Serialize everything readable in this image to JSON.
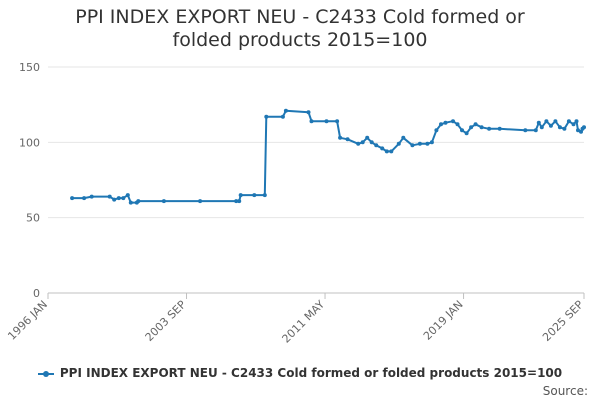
{
  "chart_data": {
    "type": "line",
    "title": "PPI INDEX EXPORT NEU - C2433 Cold formed or folded products 2015=100",
    "xlabel": "",
    "ylabel": "",
    "ylim": [
      0,
      150
    ],
    "yticks": [
      "0",
      "50",
      "100",
      "150"
    ],
    "xlim": [
      "1996-01",
      "2025-09"
    ],
    "xticks": [
      "1996 JAN",
      "2003 SEP",
      "2011 MAY",
      "2019 JAN",
      "2025 SEP"
    ],
    "grid": true,
    "legend_position": "bottom",
    "series": [
      {
        "name": "PPI INDEX EXPORT NEU - C2433 Cold formed or folded products 2015=100",
        "color": "#1f77b4",
        "points": [
          [
            "1997-05",
            63
          ],
          [
            "1998-01",
            63
          ],
          [
            "1998-06",
            64
          ],
          [
            "1999-06",
            64
          ],
          [
            "1999-09",
            62
          ],
          [
            "1999-12",
            63
          ],
          [
            "2000-03",
            63
          ],
          [
            "2000-06",
            65
          ],
          [
            "2000-08",
            60
          ],
          [
            "2000-12",
            60
          ],
          [
            "2001-01",
            61
          ],
          [
            "2002-06",
            61
          ],
          [
            "2004-06",
            61
          ],
          [
            "2006-06",
            61
          ],
          [
            "2006-08",
            61
          ],
          [
            "2006-09",
            65
          ],
          [
            "2007-06",
            65
          ],
          [
            "2008-01",
            65
          ],
          [
            "2008-02",
            117
          ],
          [
            "2009-01",
            117
          ],
          [
            "2009-03",
            121
          ],
          [
            "2010-06",
            120
          ],
          [
            "2010-08",
            114
          ],
          [
            "2011-06",
            114
          ],
          [
            "2012-01",
            114
          ],
          [
            "2012-03",
            103
          ],
          [
            "2012-08",
            102
          ],
          [
            "2013-03",
            99
          ],
          [
            "2013-06",
            100
          ],
          [
            "2013-09",
            103
          ],
          [
            "2013-12",
            100
          ],
          [
            "2014-03",
            98
          ],
          [
            "2014-07",
            96
          ],
          [
            "2014-10",
            94
          ],
          [
            "2015-01",
            94
          ],
          [
            "2015-06",
            99
          ],
          [
            "2015-09",
            103
          ],
          [
            "2016-03",
            98
          ],
          [
            "2016-08",
            99
          ],
          [
            "2017-01",
            99
          ],
          [
            "2017-04",
            100
          ],
          [
            "2017-07",
            108
          ],
          [
            "2017-10",
            112
          ],
          [
            "2018-01",
            113
          ],
          [
            "2018-06",
            114
          ],
          [
            "2018-09",
            112
          ],
          [
            "2018-12",
            108
          ],
          [
            "2019-03",
            106
          ],
          [
            "2019-06",
            110
          ],
          [
            "2019-09",
            112
          ],
          [
            "2020-01",
            110
          ],
          [
            "2020-06",
            109
          ],
          [
            "2021-01",
            109
          ],
          [
            "2022-06",
            108
          ],
          [
            "2023-01",
            108
          ],
          [
            "2023-03",
            113
          ],
          [
            "2023-05",
            110
          ],
          [
            "2023-08",
            114
          ],
          [
            "2023-11",
            111
          ],
          [
            "2024-02",
            114
          ],
          [
            "2024-05",
            110
          ],
          [
            "2024-08",
            109
          ],
          [
            "2024-11",
            114
          ],
          [
            "2025-02",
            112
          ],
          [
            "2025-04",
            114
          ],
          [
            "2025-05",
            108
          ],
          [
            "2025-07",
            107
          ],
          [
            "2025-08",
            109
          ],
          [
            "2025-09",
            110
          ]
        ]
      }
    ]
  },
  "legend": {
    "label": "PPI INDEX EXPORT NEU - C2433 Cold formed or folded products 2015=100"
  },
  "source_label": "Source:"
}
